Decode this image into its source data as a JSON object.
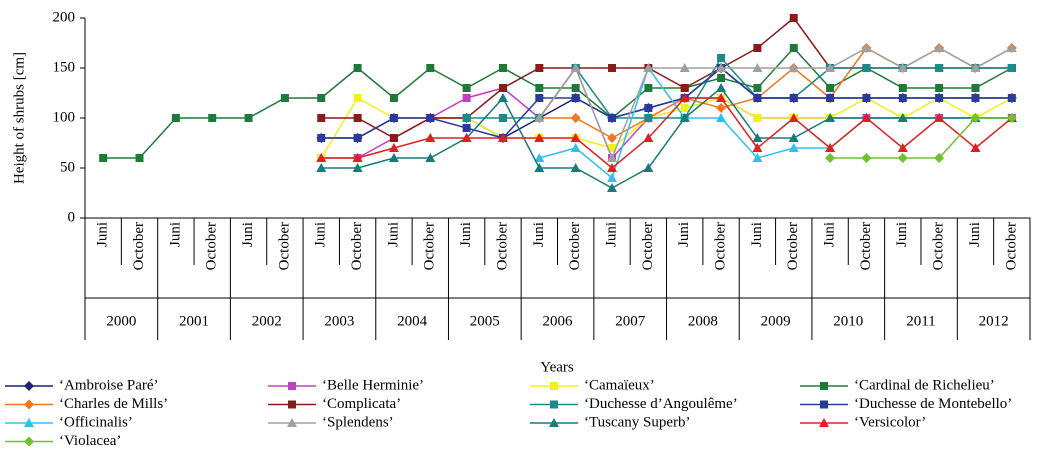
{
  "chart_data": {
    "type": "line",
    "y_label": "Height of shrubs [cm]",
    "x_label": "Years",
    "categories": [
      "Juni",
      "October",
      "Juni",
      "October",
      "Juni",
      "October",
      "Juni",
      "October",
      "Juni",
      "October",
      "Juni",
      "October",
      "Juni",
      "October",
      "Juni",
      "October",
      "Juni",
      "October",
      "Juni",
      "October",
      "Juni",
      "October",
      "Juni",
      "October",
      "Juni",
      "October"
    ],
    "groups": [
      "2000",
      "2001",
      "2002",
      "2003",
      "2004",
      "2005",
      "2006",
      "2007",
      "2008",
      "2009",
      "2010",
      "2011",
      "2012"
    ],
    "ylim": [
      0,
      200
    ],
    "yticks": [
      0,
      50,
      100,
      150,
      200
    ],
    "series": [
      {
        "name": "‘Ambroise Paré’",
        "color": "#1f1f7a",
        "marker": "diamond",
        "values": [
          null,
          null,
          null,
          null,
          null,
          null,
          80,
          80,
          100,
          100,
          100,
          80,
          100,
          120,
          100,
          110,
          120,
          150,
          120,
          120,
          120,
          120,
          120,
          120,
          120,
          120
        ]
      },
      {
        "name": "‘Belle Herminie’",
        "color": "#c040c0",
        "marker": "square",
        "values": [
          null,
          null,
          null,
          null,
          null,
          null,
          60,
          60,
          80,
          100,
          120,
          130,
          100,
          150,
          60,
          100,
          120,
          120,
          100,
          100,
          100,
          100,
          100,
          100,
          100,
          100
        ]
      },
      {
        "name": "‘Camaïeux’",
        "color": "#f0f020",
        "marker": "square",
        "values": [
          null,
          null,
          null,
          null,
          null,
          null,
          60,
          120,
          100,
          100,
          100,
          80,
          80,
          80,
          70,
          100,
          110,
          120,
          100,
          100,
          100,
          120,
          100,
          120,
          100,
          120
        ]
      },
      {
        "name": "‘Cardinal de Richelieu’",
        "color": "#1f7a3a",
        "marker": "square",
        "values": [
          60,
          60,
          100,
          100,
          100,
          120,
          120,
          150,
          120,
          150,
          130,
          150,
          130,
          130,
          100,
          130,
          130,
          140,
          130,
          170,
          130,
          150,
          130,
          130,
          130,
          150
        ]
      },
      {
        "name": "‘Charles de Mills’",
        "color": "#f07820",
        "marker": "diamond",
        "values": [
          null,
          null,
          null,
          null,
          null,
          null,
          null,
          null,
          null,
          null,
          null,
          null,
          100,
          100,
          80,
          100,
          120,
          110,
          120,
          150,
          120,
          170,
          150,
          170,
          150,
          170
        ]
      },
      {
        "name": "‘Complicata’",
        "color": "#8b1a1a",
        "marker": "square",
        "values": [
          null,
          null,
          null,
          null,
          null,
          null,
          100,
          100,
          80,
          100,
          100,
          130,
          150,
          150,
          150,
          150,
          130,
          150,
          170,
          200,
          150,
          150,
          150,
          150,
          150,
          150
        ]
      },
      {
        "name": "‘Duchesse d’Angoulême’",
        "color": "#1a8a8a",
        "marker": "square",
        "values": [
          null,
          null,
          null,
          null,
          null,
          null,
          null,
          null,
          null,
          null,
          100,
          100,
          100,
          150,
          100,
          100,
          100,
          160,
          120,
          120,
          150,
          150,
          150,
          150,
          150,
          150
        ]
      },
      {
        "name": "‘Duchesse de Montebello’",
        "color": "#2a3a9a",
        "marker": "square",
        "values": [
          null,
          null,
          null,
          null,
          null,
          null,
          80,
          80,
          100,
          100,
          90,
          80,
          120,
          120,
          100,
          110,
          120,
          150,
          120,
          120,
          120,
          120,
          120,
          120,
          120,
          120
        ]
      },
      {
        "name": "‘Officinalis’",
        "color": "#30c0f0",
        "marker": "triangle",
        "values": [
          null,
          null,
          null,
          null,
          null,
          null,
          null,
          null,
          null,
          null,
          null,
          null,
          60,
          70,
          40,
          150,
          100,
          100,
          60,
          70,
          70,
          100,
          100,
          100,
          100,
          100
        ]
      },
      {
        "name": "‘Splendens’",
        "color": "#a0a0a0",
        "marker": "triangle",
        "values": [
          null,
          null,
          null,
          null,
          null,
          null,
          null,
          null,
          null,
          null,
          null,
          null,
          100,
          150,
          60,
          150,
          150,
          150,
          150,
          150,
          150,
          170,
          150,
          170,
          150,
          170
        ]
      },
      {
        "name": "‘Tuscany Superb’",
        "color": "#1a7a7a",
        "marker": "triangle",
        "values": [
          null,
          null,
          null,
          null,
          null,
          null,
          50,
          50,
          60,
          60,
          80,
          120,
          50,
          50,
          30,
          50,
          100,
          130,
          80,
          80,
          100,
          100,
          100,
          100,
          100,
          100
        ]
      },
      {
        "name": "‘Versicolor’",
        "color": "#e02020",
        "marker": "triangle",
        "values": [
          null,
          null,
          null,
          null,
          null,
          null,
          60,
          60,
          70,
          80,
          80,
          80,
          80,
          80,
          50,
          80,
          120,
          120,
          70,
          100,
          70,
          100,
          70,
          100,
          70,
          100
        ]
      },
      {
        "name": "‘Violacea’",
        "color": "#70c030",
        "marker": "diamond",
        "values": [
          null,
          null,
          null,
          null,
          null,
          null,
          null,
          null,
          null,
          null,
          null,
          null,
          null,
          null,
          null,
          null,
          null,
          null,
          null,
          null,
          60,
          60,
          60,
          60,
          100,
          100
        ]
      }
    ]
  }
}
